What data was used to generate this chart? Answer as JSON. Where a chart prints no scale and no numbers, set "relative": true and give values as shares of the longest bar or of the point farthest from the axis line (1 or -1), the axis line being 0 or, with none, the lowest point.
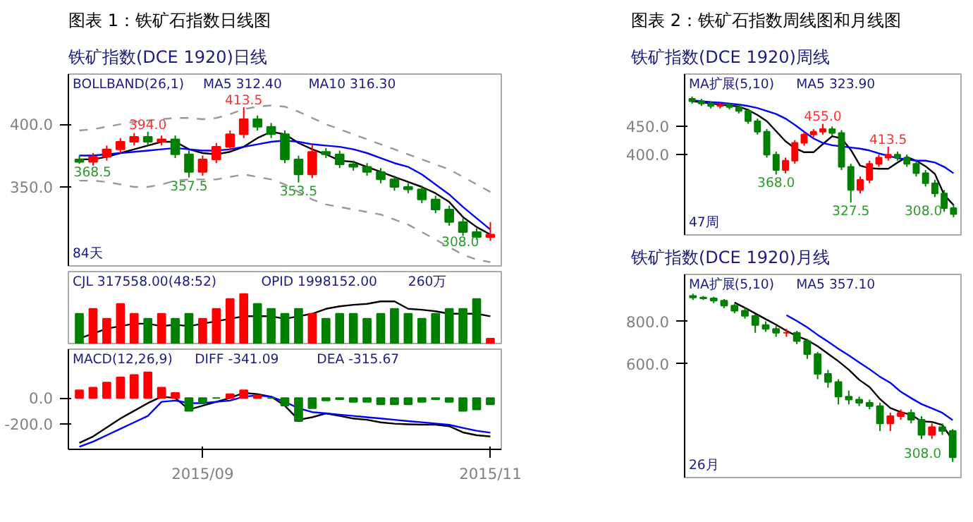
{
  "chart_data": [
    {
      "type": "candlestick",
      "title": "图表 1：铁矿石指数日线图",
      "subtitle": "铁矿指数(DCE 1920)日线",
      "categories": [
        null,
        null,
        null,
        null,
        null,
        null,
        null,
        null,
        null,
        null,
        null,
        null,
        null,
        null,
        null,
        null,
        null,
        null,
        null,
        null,
        null,
        null,
        null,
        null,
        null,
        null,
        null,
        null,
        null,
        null,
        null
      ],
      "ohlc": [
        [
          372,
          375,
          368.5,
          370
        ],
        [
          370,
          377,
          367,
          374
        ],
        [
          374,
          383,
          371,
          380
        ],
        [
          380,
          389,
          377,
          386
        ],
        [
          386,
          393,
          383,
          390
        ],
        [
          390,
          394,
          383,
          386
        ],
        [
          386,
          391,
          383,
          388
        ],
        [
          388,
          391,
          373,
          376
        ],
        [
          376,
          379,
          357.5,
          362
        ],
        [
          362,
          375,
          359,
          372
        ],
        [
          372,
          385,
          369,
          382
        ],
        [
          382,
          395,
          379,
          392
        ],
        [
          392,
          413.5,
          389,
          404
        ],
        [
          404,
          407,
          395,
          398
        ],
        [
          398,
          401,
          389,
          392
        ],
        [
          392,
          395,
          369,
          372
        ],
        [
          372,
          375,
          353.5,
          360
        ],
        [
          360,
          384,
          357,
          378
        ],
        [
          378,
          381,
          373,
          376
        ],
        [
          376,
          379,
          365,
          368
        ],
        [
          368,
          371,
          363,
          366
        ],
        [
          366,
          369,
          359,
          362
        ],
        [
          362,
          365,
          353,
          356
        ],
        [
          356,
          359,
          347,
          350
        ],
        [
          350,
          353,
          345,
          348
        ],
        [
          348,
          351,
          337,
          340
        ],
        [
          340,
          343,
          329,
          332
        ],
        [
          332,
          335,
          319,
          322
        ],
        [
          322,
          325,
          311,
          314
        ],
        [
          314,
          317,
          308,
          310
        ],
        [
          310,
          322,
          307,
          312
        ]
      ],
      "colors": [
        "#008000",
        "#ff0000",
        "#ff0000",
        "#ff0000",
        "#ff0000",
        "#008000",
        "#ff0000",
        "#008000",
        "#008000",
        "#ff0000",
        "#ff0000",
        "#ff0000",
        "#ff0000",
        "#008000",
        "#008000",
        "#008000",
        "#008000",
        "#ff0000",
        "#008000",
        "#008000",
        "#008000",
        "#008000",
        "#008000",
        "#008000",
        "#008000",
        "#008000",
        "#008000",
        "#008000",
        "#008000",
        "#008000",
        "#ff0000"
      ],
      "series": [
        {
          "type": "line",
          "color": "#000000",
          "values": [
            372,
            372,
            374,
            377,
            380,
            383,
            386,
            386,
            380,
            377,
            376,
            378,
            382,
            389,
            394,
            392,
            385,
            380,
            376,
            371,
            370,
            366,
            362,
            358,
            354,
            350,
            345,
            338,
            326,
            318,
            312
          ]
        },
        {
          "type": "line",
          "color": "#0000ff",
          "values": [
            375,
            375,
            376,
            377,
            378,
            379,
            380,
            381,
            380,
            379,
            379,
            380,
            382,
            384,
            386,
            387,
            386,
            384,
            383,
            382,
            380,
            377,
            373,
            369,
            366,
            360,
            352,
            344,
            334,
            325,
            316
          ]
        },
        {
          "type": "line",
          "color": "#999999",
          "line_style": "dashed",
          "values": [
            395,
            396,
            398,
            400,
            402,
            403,
            404,
            405,
            405,
            404,
            405,
            408,
            412,
            414,
            415,
            414,
            410,
            405,
            400,
            396,
            392,
            388,
            384,
            380,
            376,
            372,
            368,
            364,
            358,
            352,
            346
          ]
        },
        {
          "type": "line",
          "color": "#999999",
          "line_style": "dashed",
          "values": [
            355,
            355,
            354,
            352,
            350,
            350,
            352,
            355,
            356,
            356,
            356,
            358,
            360,
            358,
            356,
            352,
            346,
            340,
            336,
            334,
            332,
            330,
            328,
            324,
            320,
            314,
            308,
            302,
            296,
            292,
            290
          ]
        }
      ],
      "ylim": [
        287,
        440
      ],
      "yticks": [
        {
          "value": 350,
          "label": "350.0"
        },
        {
          "value": 400,
          "label": "400.0"
        }
      ],
      "tick_labels": "y",
      "annotations": [
        "BOLLBAND(26,1)",
        "MA5  312.40",
        "MA10  316.30",
        "84天",
        "308.0",
        {
          "text": "368.5",
          "y": 368.5
        },
        {
          "text": "394.0",
          "y": 394
        },
        {
          "text": "413.5",
          "y": 413.5
        },
        {
          "text": "357.5",
          "y": 357.5
        },
        {
          "text": "353.5",
          "y": 353.5
        }
      ]
    },
    {
      "type": "bar",
      "relative": true,
      "tick_labels": false,
      "categories": [
        null,
        null,
        null,
        null,
        null,
        null,
        null,
        null,
        null,
        null,
        null,
        null,
        null,
        null,
        null,
        null,
        null,
        null,
        null,
        null,
        null,
        null,
        null,
        null,
        null,
        null,
        null,
        null,
        null,
        null,
        null
      ],
      "values": [
        0.6,
        0.7,
        0.5,
        0.8,
        0.6,
        0.5,
        0.6,
        0.5,
        0.6,
        0.5,
        0.7,
        0.9,
        1.0,
        0.8,
        0.7,
        0.6,
        0.7,
        0.6,
        0.5,
        0.6,
        0.6,
        0.5,
        0.6,
        0.7,
        0.6,
        0.5,
        0.6,
        0.7,
        0.7,
        0.9,
        0.1
      ],
      "colors": [
        "#008000",
        "#ff0000",
        "#ff0000",
        "#ff0000",
        "#ff0000",
        "#008000",
        "#ff0000",
        "#008000",
        "#008000",
        "#ff0000",
        "#ff0000",
        "#ff0000",
        "#ff0000",
        "#008000",
        "#008000",
        "#008000",
        "#008000",
        "#ff0000",
        "#008000",
        "#008000",
        "#008000",
        "#008000",
        "#008000",
        "#008000",
        "#008000",
        "#008000",
        "#008000",
        "#008000",
        "#008000",
        "#008000",
        "#ff0000"
      ],
      "series": [
        {
          "type": "line",
          "color": "#000000",
          "values": [
            0.1,
            0.2,
            0.3,
            0.35,
            0.4,
            0.4,
            0.35,
            0.38,
            0.35,
            0.4,
            0.45,
            0.5,
            0.55,
            0.55,
            0.55,
            0.5,
            0.55,
            0.6,
            0.7,
            0.75,
            0.78,
            0.8,
            0.85,
            0.85,
            0.7,
            0.68,
            0.65,
            0.6,
            0.6,
            0.6,
            0.55
          ]
        }
      ],
      "annotations": [
        "CJL  317558.00(48:52)",
        "OPID  1998152.00",
        "260万"
      ]
    },
    {
      "type": "bar",
      "categories": [
        null,
        null,
        null,
        null,
        null,
        null,
        null,
        null,
        null,
        "2015/09",
        null,
        null,
        null,
        null,
        null,
        null,
        null,
        null,
        null,
        null,
        null,
        null,
        null,
        null,
        null,
        null,
        null,
        null,
        null,
        null,
        "2015/11"
      ],
      "values": [
        60,
        80,
        120,
        160,
        180,
        200,
        80,
        40,
        -100,
        -40,
        0,
        30,
        60,
        20,
        0,
        -60,
        -180,
        -80,
        -20,
        -10,
        -30,
        -30,
        -50,
        -50,
        -50,
        -30,
        -10,
        -30,
        -100,
        -90,
        -50
      ],
      "colors": [
        "#ff0000",
        "#ff0000",
        "#ff0000",
        "#ff0000",
        "#ff0000",
        "#ff0000",
        "#ff0000",
        "#ff0000",
        "#008000",
        "#008000",
        "#008000",
        "#ff0000",
        "#ff0000",
        "#ff0000",
        "#008000",
        "#008000",
        "#008000",
        "#008000",
        "#008000",
        "#008000",
        "#008000",
        "#008000",
        "#008000",
        "#008000",
        "#008000",
        "#008000",
        "#008000",
        "#008000",
        "#008000",
        "#008000",
        "#008000"
      ],
      "series": [
        {
          "type": "line",
          "color": "#000000",
          "values": [
            -350,
            -300,
            -230,
            -160,
            -100,
            -40,
            10,
            0,
            -90,
            -60,
            -30,
            0,
            40,
            30,
            10,
            -60,
            -170,
            -150,
            -120,
            -140,
            -160,
            -170,
            -190,
            -200,
            -205,
            -208,
            -208,
            -220,
            -268,
            -290,
            -300
          ]
        },
        {
          "type": "line",
          "color": "#0000ff",
          "values": [
            -380,
            -340,
            -290,
            -240,
            -190,
            -140,
            -30,
            -20,
            -40,
            -40,
            -30,
            -20,
            10,
            20,
            10,
            -30,
            -80,
            -110,
            -120,
            -130,
            -140,
            -150,
            -160,
            -170,
            -180,
            -189,
            -199,
            -209,
            -233,
            -255,
            -270
          ]
        }
      ],
      "ylim": [
        -400,
        380
      ],
      "yticks": [
        {
          "value": 0,
          "label": "0.0"
        },
        {
          "value": -200,
          "label": "-200.0"
        }
      ],
      "annotations": [
        "MACD(12,26,9)",
        "DIFF  -341.09",
        "DEA  -315.67"
      ]
    },
    {
      "type": "candlestick",
      "title": "图表 2：铁矿石指数周线图和月线图",
      "subtitle": "铁矿指数(DCE 1920)周线",
      "log": true,
      "categories": [
        null,
        null,
        null,
        null,
        null,
        null,
        null,
        null,
        null,
        null,
        null,
        null,
        null,
        null,
        null,
        null,
        null,
        null,
        null,
        null,
        null,
        null,
        null,
        null,
        null,
        null,
        null,
        null,
        null
      ],
      "ohlc": [
        [
          505,
          510,
          495,
          500
        ],
        [
          500,
          505,
          490,
          495
        ],
        [
          495,
          500,
          485,
          490
        ],
        [
          490,
          497,
          485,
          492
        ],
        [
          492,
          497,
          483,
          488
        ],
        [
          488,
          493,
          475,
          480
        ],
        [
          480,
          485,
          455,
          460
        ],
        [
          460,
          465,
          435,
          440
        ],
        [
          440,
          445,
          395,
          400
        ],
        [
          400,
          405,
          368,
          375
        ],
        [
          375,
          395,
          370,
          390
        ],
        [
          390,
          425,
          385,
          420
        ],
        [
          420,
          440,
          415,
          435
        ],
        [
          435,
          445,
          430,
          440
        ],
        [
          440,
          455,
          435,
          445
        ],
        [
          445,
          450,
          433,
          438
        ],
        [
          438,
          443,
          375,
          380
        ],
        [
          380,
          385,
          327.5,
          345
        ],
        [
          345,
          365,
          340,
          360
        ],
        [
          360,
          390,
          355,
          385
        ],
        [
          385,
          400,
          380,
          395
        ],
        [
          395,
          413.5,
          390,
          400
        ],
        [
          400,
          405,
          390,
          395
        ],
        [
          395,
          400,
          380,
          385
        ],
        [
          385,
          390,
          365,
          370
        ],
        [
          370,
          375,
          350,
          355
        ],
        [
          355,
          360,
          335,
          340
        ],
        [
          340,
          345,
          315,
          320
        ],
        [
          320,
          325,
          308,
          312
        ]
      ],
      "colors": [
        "#008000",
        "#008000",
        "#008000",
        "#ff0000",
        "#008000",
        "#008000",
        "#008000",
        "#008000",
        "#008000",
        "#008000",
        "#ff0000",
        "#ff0000",
        "#ff0000",
        "#ff0000",
        "#ff0000",
        "#008000",
        "#008000",
        "#008000",
        "#ff0000",
        "#ff0000",
        "#ff0000",
        "#ff0000",
        "#008000",
        "#008000",
        "#008000",
        "#008000",
        "#008000",
        "#008000",
        "#008000"
      ],
      "series": [
        {
          "type": "line",
          "color": "#000000",
          "values": [
            500,
            498,
            495,
            493,
            491,
            489,
            482,
            472,
            460,
            441,
            423,
            411,
            404,
            404,
            418,
            432,
            428,
            408,
            382,
            378,
            377,
            377,
            387,
            396,
            390,
            381,
            369,
            338,
            324
          ]
        },
        {
          "type": "line",
          "color": "#0000ff",
          "values": [
            502,
            500,
            498,
            497,
            495,
            493,
            490,
            486,
            480,
            474,
            465,
            453,
            440,
            428,
            420,
            416,
            414,
            412,
            410,
            407,
            402,
            398,
            394,
            392,
            390,
            390,
            387,
            380,
            370
          ]
        }
      ],
      "ylim": [
        286,
        560
      ],
      "yticks": [
        {
          "value": 400,
          "label": "400.0"
        },
        {
          "value": 450,
          "label": "450.0"
        }
      ],
      "tick_labels": "y",
      "annotations": [
        "MA扩展(5,10)",
        "MA5 323.90",
        "47周",
        "308.0",
        {
          "text": "455.0",
          "y": 455
        },
        {
          "text": "368.0",
          "y": 368
        },
        {
          "text": "327.5",
          "y": 327.5
        },
        {
          "text": "413.5",
          "y": 413.5
        }
      ]
    },
    {
      "type": "candlestick",
      "subtitle": "铁矿指数(DCE 1920)月线",
      "log": true,
      "categories": [
        null,
        null,
        null,
        null,
        null,
        null,
        null,
        null,
        null,
        null,
        null,
        null,
        null,
        null,
        null,
        null,
        null,
        null,
        null,
        null,
        null,
        null,
        null,
        null,
        null,
        null
      ],
      "ohlc": [
        [
          950,
          965,
          925,
          940
        ],
        [
          940,
          950,
          925,
          935
        ],
        [
          935,
          945,
          905,
          920
        ],
        [
          920,
          930,
          875,
          890
        ],
        [
          890,
          900,
          845,
          860
        ],
        [
          860,
          880,
          815,
          830
        ],
        [
          830,
          840,
          740,
          780
        ],
        [
          780,
          800,
          745,
          760
        ],
        [
          760,
          775,
          720,
          740
        ],
        [
          740,
          760,
          720,
          740
        ],
        [
          740,
          750,
          685,
          700
        ],
        [
          700,
          710,
          620,
          640
        ],
        [
          640,
          650,
          540,
          560
        ],
        [
          560,
          575,
          510,
          530
        ],
        [
          530,
          540,
          455,
          480
        ],
        [
          480,
          500,
          455,
          470
        ],
        [
          470,
          480,
          450,
          460
        ],
        [
          460,
          470,
          440,
          450
        ],
        [
          450,
          460,
          380,
          400
        ],
        [
          400,
          430,
          380,
          420
        ],
        [
          420,
          440,
          410,
          430
        ],
        [
          430,
          440,
          400,
          410
        ],
        [
          410,
          420,
          360,
          370
        ],
        [
          370,
          400,
          360,
          390
        ],
        [
          390,
          400,
          370,
          380
        ],
        [
          380,
          385,
          308,
          318
        ]
      ],
      "colors": [
        "#008000",
        "#008000",
        "#008000",
        "#008000",
        "#008000",
        "#008000",
        "#008000",
        "#008000",
        "#008000",
        "#ff0000",
        "#008000",
        "#008000",
        "#008000",
        "#008000",
        "#008000",
        "#008000",
        "#008000",
        "#008000",
        "#008000",
        "#ff0000",
        "#ff0000",
        "#008000",
        "#008000",
        "#ff0000",
        "#008000",
        "#008000"
      ],
      "series": [
        {
          "type": "line",
          "color": "#000000",
          "values": [
            null,
            null,
            null,
            null,
            909,
            877,
            844,
            812,
            782,
            750,
            724,
            704,
            676,
            642,
            610,
            576,
            538,
            512,
            472,
            444,
            432,
            424,
            406,
            404,
            396,
            357
          ]
        },
        {
          "type": "line",
          "color": "#0000ff",
          "values": [
            null,
            null,
            null,
            null,
            null,
            null,
            null,
            null,
            null,
            834,
            802,
            768,
            730,
            697,
            664,
            635,
            605,
            578,
            549,
            527,
            496,
            475,
            456,
            443,
            430,
            409
          ]
        }
      ],
      "ylim": [
        277,
        1100
      ],
      "yticks": [
        {
          "value": 600,
          "label": "600.0"
        },
        {
          "value": 800,
          "label": "800.0"
        }
      ],
      "tick_labels": "y",
      "annotations": [
        "MA扩展(5,10)",
        "MA5 357.10",
        "26月",
        "308.0"
      ]
    }
  ]
}
